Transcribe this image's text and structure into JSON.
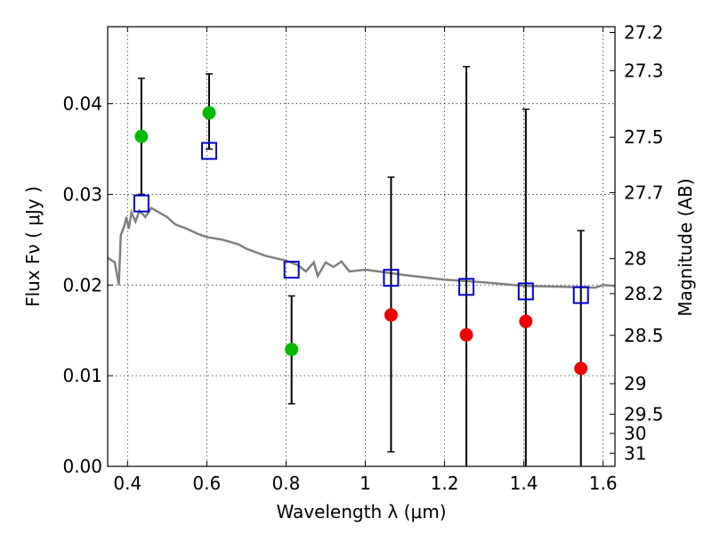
{
  "chart_data": {
    "type": "scatter",
    "xlabel": "Wavelength  λ (μm)",
    "ylabel": "Flux  Fν  ( μJy )",
    "y2label": "Magnitude (AB)",
    "xlim": [
      0.35,
      1.63
    ],
    "ylim": [
      0.0,
      0.0485
    ],
    "x_ticks": [
      0.4,
      0.6,
      0.8,
      1.0,
      1.2,
      1.4,
      1.6
    ],
    "x_tick_labels": [
      "0.4",
      "0.6",
      "0.8",
      "1",
      "1.2",
      "1.4",
      "1.6"
    ],
    "y_ticks": [
      0.0,
      0.01,
      0.02,
      0.03,
      0.04
    ],
    "y_tick_labels": [
      "0.00",
      "0.01",
      "0.02",
      "0.03",
      "0.04"
    ],
    "magnitude_ticks": [
      "27.2",
      "27.3",
      "27.5",
      "27.7",
      "28",
      "28.2",
      "28.5",
      "29",
      "29.5",
      "30",
      "31"
    ],
    "grid": true,
    "series": [
      {
        "marker": "circle",
        "points": [
          {
            "x": 0.435,
            "y": 0.0364,
            "yerr_low": 0.03,
            "yerr_high": 0.0428,
            "color": "#00bb00"
          },
          {
            "x": 0.606,
            "y": 0.039,
            "yerr_low": 0.035,
            "yerr_high": 0.0433,
            "color": "#00bb00"
          },
          {
            "x": 0.814,
            "y": 0.0129,
            "yerr_low": 0.0069,
            "yerr_high": 0.0188,
            "color": "#00bb00"
          },
          {
            "x": 1.065,
            "y": 0.0167,
            "yerr_low": 0.0016,
            "yerr_high": 0.0319,
            "color": "#ee0000"
          },
          {
            "x": 1.255,
            "y": 0.0145,
            "yerr_low": 0.0,
            "yerr_high": 0.0441,
            "color": "#ee0000"
          },
          {
            "x": 1.405,
            "y": 0.016,
            "yerr_low": 0.0,
            "yerr_high": 0.0394,
            "color": "#ee0000"
          },
          {
            "x": 1.544,
            "y": 0.0108,
            "yerr_low": 0.0,
            "yerr_high": 0.026,
            "color": "#ee0000"
          }
        ]
      },
      {
        "marker": "open-square",
        "color": "#0000cc",
        "points": [
          {
            "x": 0.435,
            "y": 0.029
          },
          {
            "x": 0.606,
            "y": 0.0348
          },
          {
            "x": 0.814,
            "y": 0.0217
          },
          {
            "x": 1.065,
            "y": 0.0208
          },
          {
            "x": 1.255,
            "y": 0.0198
          },
          {
            "x": 1.405,
            "y": 0.0193
          },
          {
            "x": 1.544,
            "y": 0.0189
          }
        ]
      },
      {
        "type": "line",
        "color": "#808080",
        "points": [
          [
            0.35,
            0.023
          ],
          [
            0.368,
            0.0225
          ],
          [
            0.378,
            0.02
          ],
          [
            0.383,
            0.0255
          ],
          [
            0.392,
            0.0265
          ],
          [
            0.397,
            0.0275
          ],
          [
            0.403,
            0.0262
          ],
          [
            0.41,
            0.028
          ],
          [
            0.42,
            0.027
          ],
          [
            0.43,
            0.0282
          ],
          [
            0.445,
            0.0275
          ],
          [
            0.46,
            0.0285
          ],
          [
            0.48,
            0.028
          ],
          [
            0.5,
            0.0275
          ],
          [
            0.52,
            0.0267
          ],
          [
            0.55,
            0.0262
          ],
          [
            0.58,
            0.0256
          ],
          [
            0.6,
            0.0253
          ],
          [
            0.64,
            0.025
          ],
          [
            0.68,
            0.0245
          ],
          [
            0.7,
            0.024
          ],
          [
            0.75,
            0.0232
          ],
          [
            0.8,
            0.0227
          ],
          [
            0.83,
            0.0222
          ],
          [
            0.85,
            0.0215
          ],
          [
            0.87,
            0.0225
          ],
          [
            0.88,
            0.021
          ],
          [
            0.9,
            0.0225
          ],
          [
            0.92,
            0.022
          ],
          [
            0.94,
            0.0226
          ],
          [
            0.96,
            0.0215
          ],
          [
            1.0,
            0.0217
          ],
          [
            1.05,
            0.0214
          ],
          [
            1.1,
            0.0211
          ],
          [
            1.2,
            0.0206
          ],
          [
            1.3,
            0.0203
          ],
          [
            1.4,
            0.0199
          ],
          [
            1.5,
            0.0198
          ],
          [
            1.58,
            0.0197
          ],
          [
            1.6,
            0.02
          ],
          [
            1.63,
            0.0199
          ]
        ]
      }
    ]
  }
}
